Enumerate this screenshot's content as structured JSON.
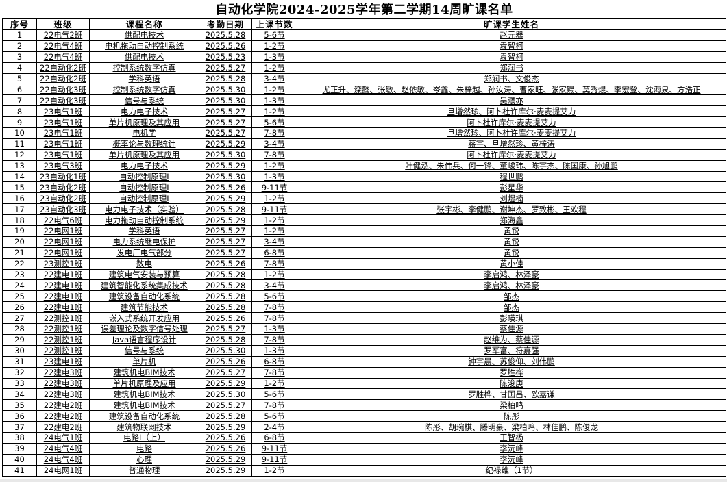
{
  "title": "自动化学院2024-2025学年第二学期14周旷课名单",
  "headers": [
    "序号",
    "班级",
    "课程名称",
    "考勤日期",
    "上课节数",
    "旷课学生姓名"
  ],
  "rows": [
    [
      "1",
      "22电气2班",
      "供配电技术",
      "2025.5.28",
      "5-6节",
      "赵元器"
    ],
    [
      "2",
      "22电气4班",
      "电机拖动自动控制系统",
      "2025.5.26",
      "1-2节",
      "袁智柯"
    ],
    [
      "3",
      "22电气4班",
      "供配电技术",
      "2025.5.23",
      "1-3节",
      "袁智柯"
    ],
    [
      "4",
      "22自动化2班",
      "控制系统数字仿真",
      "2025.5.27",
      "1-2节",
      "郑润书"
    ],
    [
      "5",
      "22自动化2班",
      "学科英语",
      "2025.5.28",
      "3-4节",
      "郑润书、文俊杰"
    ],
    [
      "6",
      "22自动化3班",
      "控制系统数字仿真",
      "2025.5.30",
      "1-2节",
      "尤正升、滦懿、张敏、赵依敏、岑鑫、朱梓越、孙汝涛、曹家旺、张家赐、莫秀焜、李宏登、沈海泉、方浩正"
    ],
    [
      "7",
      "22自动化3班",
      "信号与系统",
      "2025.5.30",
      "1-3节",
      "吴濮亦"
    ],
    [
      "8",
      "23电气1班",
      "电力电子技术",
      "2025.5.27",
      "1-2节",
      "旦增然珍、阿卜杜许库尔·麦麦提艾力"
    ],
    [
      "9",
      "23电气1班",
      "单片机原理及其应用",
      "2025.5.27",
      "5-6节",
      "阿卜杜许库尔·麦麦提艾力"
    ],
    [
      "10",
      "23电气1班",
      "电机学",
      "2025.5.27",
      "7-8节",
      "旦增然珍、阿卜杜许库尔·麦麦提艾力"
    ],
    [
      "11",
      "23电气1班",
      "概率论与数理统计",
      "2025.5.29",
      "3-4节",
      "蒋宇、旦增然珍、黄梓涛"
    ],
    [
      "12",
      "23电气1班",
      "单片机原理及其应用",
      "2025.5.30",
      "7-8节",
      "阿卜杜许库尔·麦麦提艾力"
    ],
    [
      "13",
      "23电气3班",
      "电力电子技术",
      "2025.5.29",
      "1-2节",
      "叶健泓、朱伟兵、何一锋、董峻玮、陈宇杰、陈国康、孙旭鹏"
    ],
    [
      "14",
      "23自动化1班",
      "自动控制原理Ⅰ",
      "2025.5.30",
      "1-3节",
      "程世鹏"
    ],
    [
      "15",
      "23自动化2班",
      "自动控制原理Ⅰ",
      "2025.5.26",
      "9-11节",
      "彭星华"
    ],
    [
      "16",
      "23自动化2班",
      "自动控制原理Ⅰ",
      "2025.5.29",
      "1-2节",
      "刘煜楠"
    ],
    [
      "17",
      "23自动化3班",
      "电力电子技术（实验）",
      "2025.5.28",
      "9-11节",
      "张宇彬、李健鹏、谢坤杰、罗致彬、王欢程"
    ],
    [
      "18",
      "22电气6班",
      "电力拖动自动控制系统",
      "2025.5.29",
      "1-2节",
      "郑海鑫"
    ],
    [
      "19",
      "22电网1班",
      "学科英语",
      "2025.5.27",
      "1-2节",
      "黄锐"
    ],
    [
      "20",
      "22电网1班",
      "电力系统继电保护",
      "2025.5.27",
      "3-4节",
      "黄锐"
    ],
    [
      "21",
      "22电网1班",
      "发电厂电气部分",
      "2025.5.27",
      "6-8节",
      "黄锐"
    ],
    [
      "22",
      "23测控1班",
      "数电",
      "2025.5.26",
      "7-8节",
      "黄小佳"
    ],
    [
      "23",
      "22建电1班",
      "建筑电气安装与预算",
      "2025.5.28",
      "1-2节",
      "李启鸿、林泽豪"
    ],
    [
      "24",
      "22建电1班",
      "建筑智能化系统集成技术",
      "2025.5.28",
      "3-4节",
      "李启鸿、林泽豪"
    ],
    [
      "25",
      "22建电1班",
      "建筑设备自动化系统",
      "2025.5.28",
      "5-6节",
      "邹杰"
    ],
    [
      "26",
      "22建电1班",
      "建筑节能技术",
      "2025.5.28",
      "7-8节",
      "邹杰"
    ],
    [
      "27",
      "22测控1班",
      "嵌入式系统开发应用",
      "2025.5.26",
      "7-8节",
      "彭瑛琪"
    ],
    [
      "28",
      "22测控1班",
      "误差理论及数字信号处理",
      "2025.5.27",
      "1-3节",
      "蔡佳源"
    ],
    [
      "29",
      "22测控1班",
      "Java语言程序设计",
      "2025.5.28",
      "7-8节",
      "赵维为、蔡佳源"
    ],
    [
      "30",
      "22测控1班",
      "信号与系统",
      "2025.5.30",
      "1-3节",
      "罗军富、符嘉强"
    ],
    [
      "31",
      "23建电1班",
      "单片机",
      "2025.5.26",
      "6-8节",
      "钟宇晨、苏俊仰、刘伟鹏"
    ],
    [
      "32",
      "22建电3班",
      "建筑机电BIM技术",
      "2025.5.27",
      "7-8节",
      "罗胜桦"
    ],
    [
      "33",
      "22建电3班",
      "单片机原理及应用",
      "2025.5.29",
      "1-2节",
      "陈浚庚"
    ],
    [
      "34",
      "22建电3班",
      "建筑机电BIM技术",
      "2025.5.30",
      "5-6节",
      "罗胜桦、甘国昌、欧嘉谦"
    ],
    [
      "35",
      "22建电2班",
      "建筑机电BIM技术",
      "2025.5.27",
      "7-8节",
      "梁柏鸣"
    ],
    [
      "36",
      "22建电2班",
      "建筑设备自动化系统",
      "2025.5.28",
      "5-6节",
      "陈彤"
    ],
    [
      "37",
      "22建电2班",
      "建筑物联网技术",
      "2025.5.29",
      "2-4节",
      "陈彤、胡琬棋、滕明豪、梁柏鸣、林佳鹏、陈俊龙"
    ],
    [
      "38",
      "24电气1班",
      "电路Ⅰ（上）",
      "2025.5.26",
      "6-8节",
      "王智杨"
    ],
    [
      "39",
      "24电气4班",
      "电路",
      "2025.5.26",
      "9-11节",
      "李沅峰"
    ],
    [
      "40",
      "24电气4班",
      "心理",
      "2025.5.29",
      "9-11节",
      "李沅峰"
    ],
    [
      "41",
      "24电网1班",
      "普通物理",
      "2025.5.29",
      "1-2节",
      "纪禄维（1节）"
    ]
  ]
}
